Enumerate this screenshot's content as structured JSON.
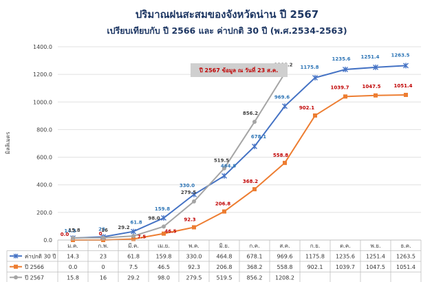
{
  "chart_data": {
    "type": "line",
    "title": "ปริมาณฝนสะสมของจังหวัดน่าน ปี 2567",
    "subtitle": "เปรียบเทียบกับ ปี 2566 และ ค่าปกติ 30 ปี (พ.ศ.2534-2563)",
    "ylabel": "มิลลิเมตร",
    "xlabel": "",
    "ylim": [
      0,
      1400
    ],
    "yticks": [
      "0.0",
      "200.0",
      "400.0",
      "600.0",
      "800.0",
      "1000.0",
      "1200.0",
      "1400.0"
    ],
    "grid": true,
    "categories": [
      "ม.ค.",
      "ก.พ.",
      "มี.ค.",
      "เม.ย.",
      "พ.ค.",
      "มิ.ย.",
      "ก.ค.",
      "ส.ค.",
      "ก.ย.",
      "ต.ค.",
      "พ.ย.",
      "ธ.ค."
    ],
    "series": [
      {
        "name": "ค่าปกติ 30 ปี",
        "color": "#4472c4",
        "label_color": "#2e75b6",
        "marker": "star",
        "values": [
          14.3,
          23,
          61.8,
          159.8,
          330.0,
          464.8,
          678.1,
          969.6,
          1175.8,
          1235.6,
          1251.4,
          1263.5
        ],
        "labels": [
          "14.3",
          "23",
          "61.8",
          "159.8",
          "330.0",
          "464.8",
          "678.1",
          "969.6",
          "1175.8",
          "1235.6",
          "1251.4",
          "1263.5"
        ]
      },
      {
        "name": "ปี 2566",
        "color": "#ed7d31",
        "label_color": "#c00000",
        "marker": "square",
        "values": [
          0.0,
          0,
          7.5,
          46.5,
          92.3,
          206.8,
          368.2,
          558.8,
          902.1,
          1039.7,
          1047.5,
          1051.4
        ],
        "labels": [
          "0.0",
          "0",
          "7.5",
          "46.5",
          "92.3",
          "206.8",
          "368.2",
          "558.8",
          "902.1",
          "1039.7",
          "1047.5",
          "1051.4"
        ]
      },
      {
        "name": "ปี 2567",
        "color": "#a5a5a5",
        "label_color": "#404040",
        "marker": "circle",
        "values": [
          15.8,
          16,
          29.2,
          98.0,
          279.5,
          519.5,
          856.2,
          1208.2,
          null,
          null,
          null,
          null
        ],
        "labels": [
          "15.8",
          "16",
          "29.2",
          "98.0",
          "279.5",
          "519.5",
          "856.2",
          "1208.2",
          "",
          "",
          "",
          ""
        ]
      }
    ],
    "annotation": "ปี 2567 ข้อมูล ณ วันที่ 23 ส.ค."
  }
}
